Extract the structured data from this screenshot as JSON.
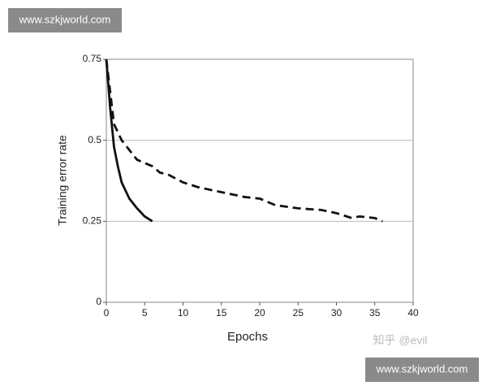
{
  "chart_data": {
    "type": "line",
    "xlabel": "Epochs",
    "ylabel": "Training error rate",
    "xlim": [
      0,
      40
    ],
    "xticks": [
      0,
      5,
      10,
      15,
      20,
      25,
      30,
      35,
      40
    ],
    "ylim": [
      0,
      0.75
    ],
    "yticks": [
      0,
      0.25,
      0.5,
      0.75
    ],
    "grid": true,
    "series": [
      {
        "color": "#111111",
        "dashed": false,
        "x": [
          0,
          0.5,
          1,
          1.5,
          2,
          3,
          4,
          5,
          6
        ],
        "values": [
          0.75,
          0.6,
          0.48,
          0.42,
          0.37,
          0.32,
          0.29,
          0.265,
          0.25
        ]
      },
      {
        "color": "#111111",
        "dashed": true,
        "x": [
          0,
          1,
          2,
          3,
          4,
          5,
          6,
          7,
          8,
          10,
          12,
          15,
          18,
          20,
          22,
          25,
          28,
          30,
          32,
          33,
          35,
          36
        ],
        "values": [
          0.75,
          0.55,
          0.5,
          0.47,
          0.44,
          0.43,
          0.42,
          0.4,
          0.395,
          0.37,
          0.355,
          0.34,
          0.325,
          0.32,
          0.3,
          0.29,
          0.285,
          0.275,
          0.26,
          0.265,
          0.26,
          0.25
        ]
      }
    ]
  },
  "watermarks": [
    "www.szkjworld.com",
    "www.szkjworld.com",
    "知乎 @evil"
  ]
}
